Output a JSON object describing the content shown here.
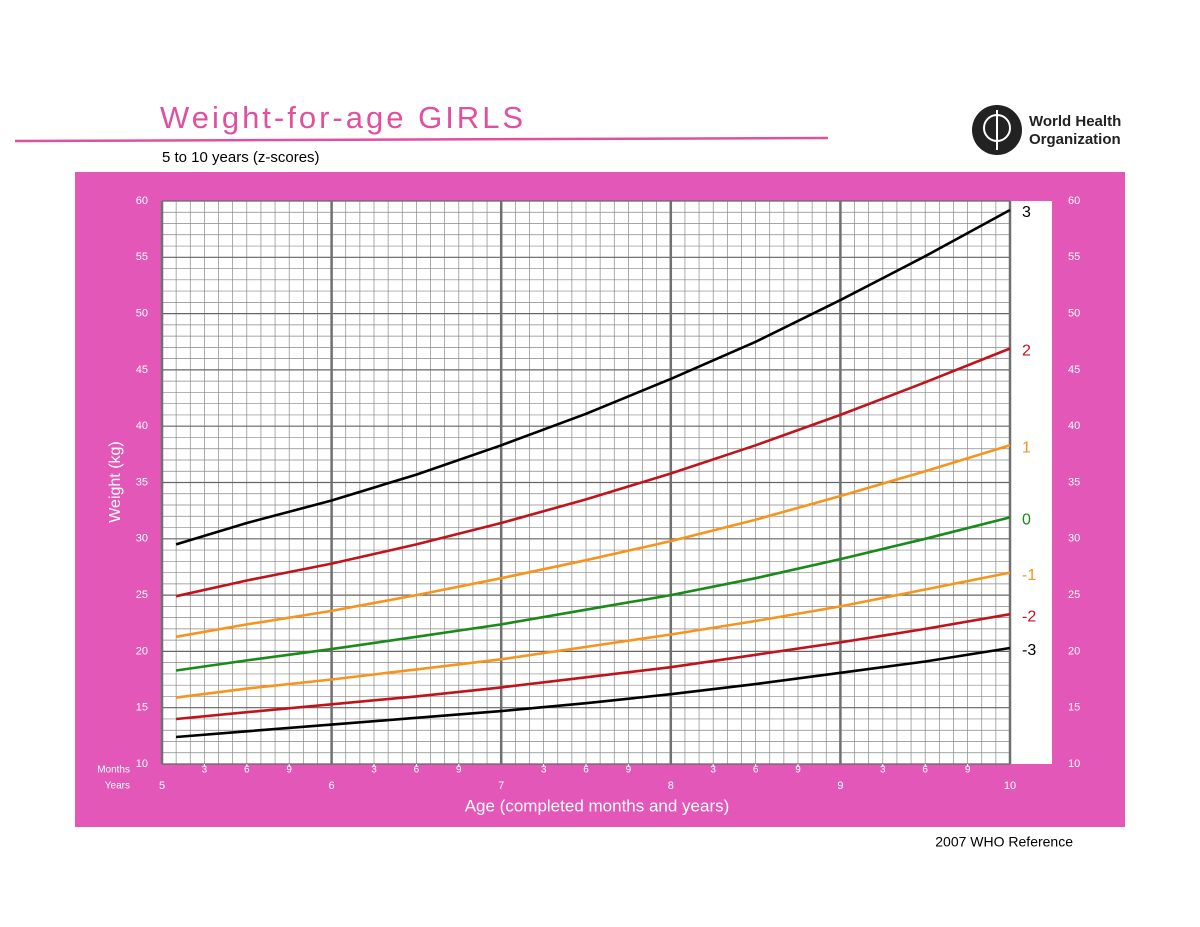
{
  "chart_data": {
    "type": "line",
    "title": "Weight-for-age GIRLS",
    "subtitle": "5 to 10 years (z-scores)",
    "logo_text": [
      "World Health",
      "Organization"
    ],
    "source": "2007 WHO Reference",
    "xlabel": "Age (completed months and years)",
    "ylabel": "Weight (kg)",
    "x_row_labels": [
      "Months",
      "Years"
    ],
    "x": [
      61,
      66,
      72,
      78,
      84,
      90,
      96,
      102,
      108,
      114,
      120
    ],
    "xlim": [
      60,
      120
    ],
    "xticks": [
      {
        "value": 60,
        "label": "5"
      },
      {
        "value": 72,
        "label": "6"
      },
      {
        "value": 84,
        "label": "7"
      },
      {
        "value": 96,
        "label": "8"
      },
      {
        "value": 108,
        "label": "9"
      },
      {
        "value": 120,
        "label": "10"
      }
    ],
    "month_ticks": [
      {
        "value": 63,
        "label": "3"
      },
      {
        "value": 66,
        "label": "6"
      },
      {
        "value": 69,
        "label": "9"
      },
      {
        "value": 75,
        "label": "3"
      },
      {
        "value": 78,
        "label": "6"
      },
      {
        "value": 81,
        "label": "9"
      },
      {
        "value": 87,
        "label": "3"
      },
      {
        "value": 90,
        "label": "6"
      },
      {
        "value": 93,
        "label": "9"
      },
      {
        "value": 99,
        "label": "3"
      },
      {
        "value": 102,
        "label": "6"
      },
      {
        "value": 105,
        "label": "9"
      },
      {
        "value": 111,
        "label": "3"
      },
      {
        "value": 114,
        "label": "6"
      },
      {
        "value": 117,
        "label": "9"
      }
    ],
    "ylim": [
      10,
      60
    ],
    "yticks": [
      10,
      15,
      20,
      25,
      30,
      35,
      40,
      45,
      50,
      55,
      60
    ],
    "grid": true,
    "series": [
      {
        "name": "3",
        "color": "#000000",
        "values": [
          29.5,
          31.4,
          33.4,
          35.7,
          38.3,
          41.1,
          44.2,
          47.5,
          51.2,
          55.1,
          59.2
        ]
      },
      {
        "name": "2",
        "color": "#c0141c",
        "values": [
          24.9,
          26.3,
          27.8,
          29.5,
          31.4,
          33.5,
          35.8,
          38.3,
          41.0,
          43.9,
          46.9
        ]
      },
      {
        "name": "1",
        "color": "#f7941d",
        "values": [
          21.3,
          22.4,
          23.6,
          25.0,
          26.5,
          28.1,
          29.8,
          31.7,
          33.8,
          36.0,
          38.3
        ]
      },
      {
        "name": "0",
        "color": "#1a8a1a",
        "values": [
          18.3,
          19.2,
          20.2,
          21.3,
          22.4,
          23.7,
          25.0,
          26.5,
          28.2,
          30.0,
          31.9
        ]
      },
      {
        "name": "-1",
        "color": "#f7941d",
        "values": [
          15.9,
          16.7,
          17.5,
          18.4,
          19.3,
          20.4,
          21.5,
          22.7,
          24.0,
          25.5,
          27.0
        ]
      },
      {
        "name": "-2",
        "color": "#c0141c",
        "values": [
          14.0,
          14.6,
          15.3,
          16.0,
          16.8,
          17.7,
          18.6,
          19.7,
          20.8,
          22.0,
          23.3
        ]
      },
      {
        "name": "-3",
        "color": "#000000",
        "values": [
          12.4,
          12.9,
          13.5,
          14.1,
          14.7,
          15.4,
          16.2,
          17.1,
          18.1,
          19.1,
          20.3
        ]
      }
    ]
  }
}
